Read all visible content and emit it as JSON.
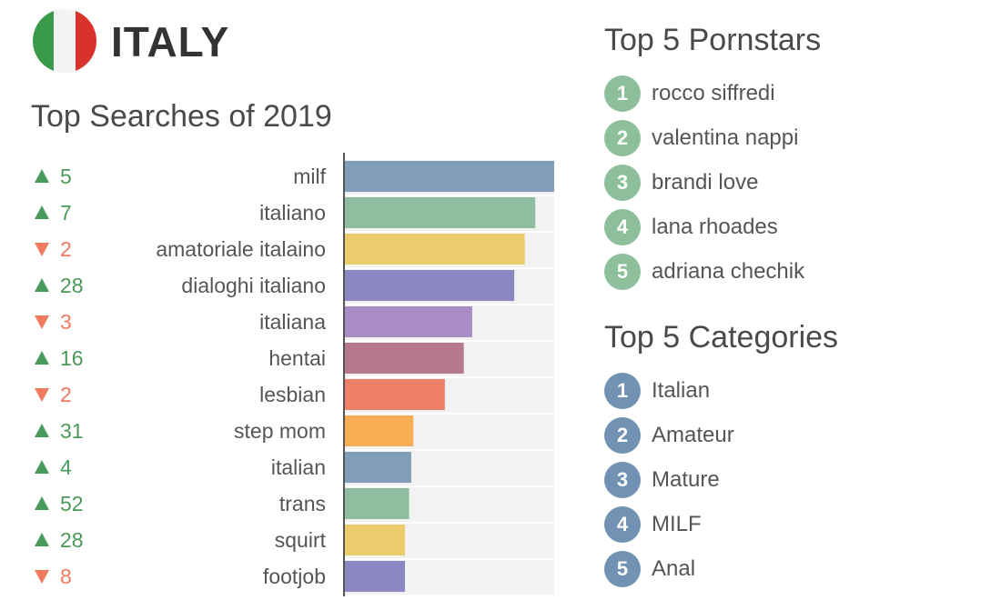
{
  "header": {
    "country": "ITALY",
    "flag_colors": [
      "#3a9a4a",
      "#f3f3f3",
      "#d9322c"
    ],
    "flag_icon": "italy-flag-icon"
  },
  "chart_data": {
    "type": "bar",
    "orientation": "horizontal",
    "title": "Top Searches of 2019",
    "categories": [
      "milf",
      "italiano",
      "amatoriale italaino",
      "dialoghi italiano",
      "italiana",
      "hentai",
      "lesbian",
      "step mom",
      "italian",
      "trans",
      "squirt",
      "footjob"
    ],
    "values": [
      100,
      91,
      86,
      81,
      61,
      57,
      48,
      33,
      32,
      31,
      29,
      29
    ],
    "ylim": [
      0,
      100
    ],
    "rank_changes": [
      {
        "direction": "up",
        "value": "5"
      },
      {
        "direction": "up",
        "value": "7"
      },
      {
        "direction": "down",
        "value": "2"
      },
      {
        "direction": "up",
        "value": "28"
      },
      {
        "direction": "down",
        "value": "3"
      },
      {
        "direction": "up",
        "value": "16"
      },
      {
        "direction": "down",
        "value": "2"
      },
      {
        "direction": "up",
        "value": "31"
      },
      {
        "direction": "up",
        "value": "4"
      },
      {
        "direction": "up",
        "value": "52"
      },
      {
        "direction": "up",
        "value": "28"
      },
      {
        "direction": "down",
        "value": "8"
      }
    ],
    "bar_colors": [
      "#819eb8",
      "#8fbda0",
      "#ebcb6c",
      "#8b86c4",
      "#a98cc6",
      "#b5788f",
      "#ef8068",
      "#f8ae55",
      "#819eb8",
      "#8fbda0",
      "#ebcb6c",
      "#8b86c4"
    ],
    "up_color": "#4a9a5c",
    "down_color": "#ef7a5e",
    "track_color": "#f2f2f2",
    "grid": false,
    "legend": "none"
  },
  "pornstars": {
    "title": "Top 5 Pornstars",
    "badge_color": "#8cbf9a",
    "items": [
      {
        "rank": "1",
        "name": "rocco siffredi"
      },
      {
        "rank": "2",
        "name": "valentina nappi"
      },
      {
        "rank": "3",
        "name": "brandi love"
      },
      {
        "rank": "4",
        "name": "lana rhoades"
      },
      {
        "rank": "5",
        "name": "adriana chechik"
      }
    ]
  },
  "categories": {
    "title": "Top 5 Categories",
    "badge_color": "#7192b3",
    "items": [
      {
        "rank": "1",
        "name": "Italian"
      },
      {
        "rank": "2",
        "name": "Amateur"
      },
      {
        "rank": "3",
        "name": "Mature"
      },
      {
        "rank": "4",
        "name": "MILF"
      },
      {
        "rank": "5",
        "name": "Anal"
      }
    ]
  }
}
